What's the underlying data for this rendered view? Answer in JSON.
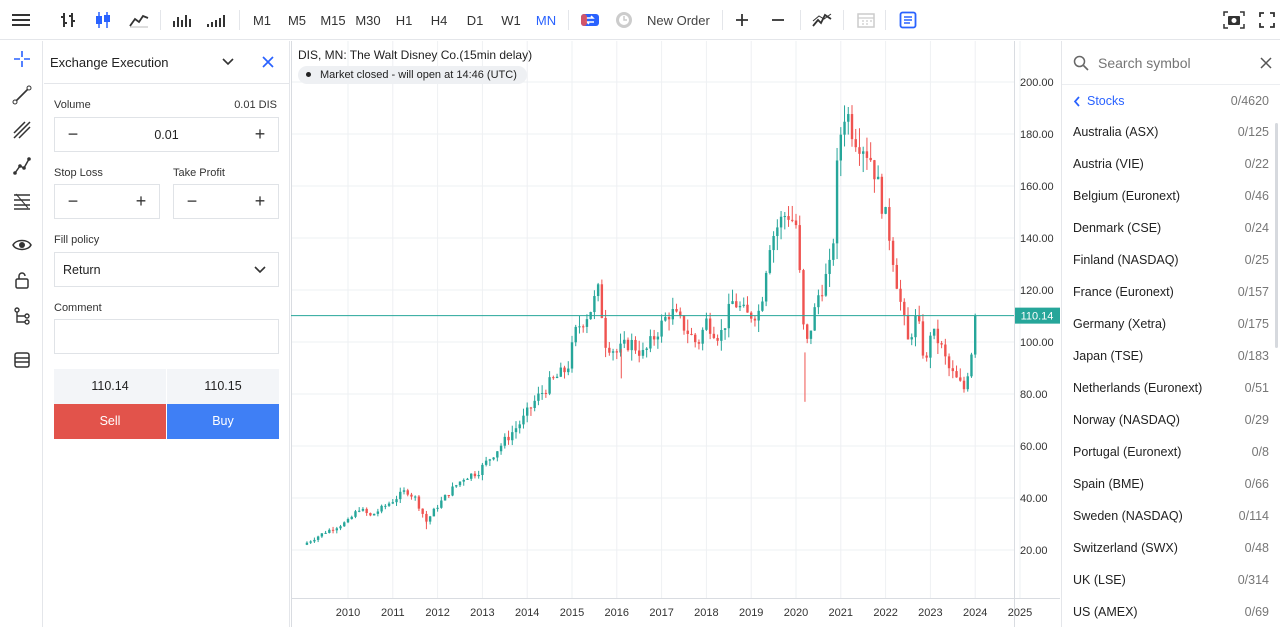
{
  "toolbar": {
    "timeframes": [
      "M1",
      "M5",
      "M15",
      "M30",
      "H1",
      "H4",
      "D1",
      "W1",
      "MN"
    ],
    "active_timeframe": "MN",
    "new_order_label": "New Order"
  },
  "order": {
    "title": "Exchange Execution",
    "volume_label": "Volume",
    "volume_unit": "0.01 DIS",
    "volume_value": "0.01",
    "stop_loss_label": "Stop Loss",
    "take_profit_label": "Take Profit",
    "fill_policy_label": "Fill policy",
    "fill_policy_value": "Return",
    "comment_label": "Comment",
    "bid": "110.14",
    "ask": "110.15",
    "sell_label": "Sell",
    "buy_label": "Buy",
    "minus": "−",
    "plus": "+"
  },
  "chart": {
    "title": "DIS, MN: The Walt Disney Co.(15min delay)",
    "status": "Market closed - will open at 14:46 (UTC)",
    "price_ticks": [
      "20.00",
      "40.00",
      "60.00",
      "80.00",
      "100.00",
      "120.00",
      "140.00",
      "160.00",
      "180.00",
      "200.00"
    ],
    "year_ticks": [
      "2010",
      "2011",
      "2012",
      "2013",
      "2014",
      "2015",
      "2016",
      "2017",
      "2018",
      "2019",
      "2020",
      "2021",
      "2022",
      "2023",
      "2024",
      "2025"
    ],
    "last_price": "110.14",
    "colors": {
      "up": "#26a69a",
      "down": "#ef5350",
      "last": "#26a69a"
    }
  },
  "chart_data": {
    "type": "candlestick",
    "title": "DIS, MN: The Walt Disney Co.(15min delay)",
    "ylim": [
      0,
      210
    ],
    "xlim": [
      2009.0,
      2025.0
    ],
    "y_ticks": [
      20,
      40,
      60,
      80,
      100,
      120,
      140,
      160,
      180,
      200
    ],
    "x_ticks": [
      2010,
      2011,
      2012,
      2013,
      2014,
      2015,
      2016,
      2017,
      2018,
      2019,
      2020,
      2021,
      2022,
      2023,
      2024,
      2025
    ],
    "close_path": [
      [
        2009.0,
        22
      ],
      [
        2009.5,
        27
      ],
      [
        2010.0,
        31
      ],
      [
        2010.25,
        36
      ],
      [
        2010.5,
        33
      ],
      [
        2010.75,
        36
      ],
      [
        2011.0,
        39
      ],
      [
        2011.3,
        43
      ],
      [
        2011.5,
        40
      ],
      [
        2011.75,
        31
      ],
      [
        2012.0,
        37
      ],
      [
        2012.3,
        43
      ],
      [
        2012.6,
        48
      ],
      [
        2012.9,
        50
      ],
      [
        2013.2,
        56
      ],
      [
        2013.5,
        62
      ],
      [
        2013.9,
        70
      ],
      [
        2014.2,
        78
      ],
      [
        2014.5,
        84
      ],
      [
        2014.9,
        90
      ],
      [
        2015.1,
        105
      ],
      [
        2015.4,
        112
      ],
      [
        2015.6,
        120
      ],
      [
        2015.75,
        100
      ],
      [
        2016.0,
        96
      ],
      [
        2016.3,
        100
      ],
      [
        2016.6,
        95
      ],
      [
        2016.9,
        104
      ],
      [
        2017.2,
        112
      ],
      [
        2017.5,
        106
      ],
      [
        2017.8,
        99
      ],
      [
        2018.0,
        108
      ],
      [
        2018.3,
        102
      ],
      [
        2018.6,
        116
      ],
      [
        2018.9,
        110
      ],
      [
        2019.2,
        112
      ],
      [
        2019.4,
        138
      ],
      [
        2019.6,
        145
      ],
      [
        2019.8,
        150
      ],
      [
        2020.0,
        145
      ],
      [
        2020.15,
        110
      ],
      [
        2020.2,
        96
      ],
      [
        2020.5,
        118
      ],
      [
        2020.8,
        130
      ],
      [
        2020.95,
        176
      ],
      [
        2021.1,
        190
      ],
      [
        2021.3,
        180
      ],
      [
        2021.5,
        176
      ],
      [
        2021.7,
        170
      ],
      [
        2021.9,
        155
      ],
      [
        2022.1,
        140
      ],
      [
        2022.3,
        118
      ],
      [
        2022.5,
        100
      ],
      [
        2022.7,
        110
      ],
      [
        2022.9,
        90
      ],
      [
        2023.0,
        104
      ],
      [
        2023.2,
        100
      ],
      [
        2023.4,
        90
      ],
      [
        2023.6,
        85
      ],
      [
        2023.75,
        82
      ],
      [
        2023.85,
        90
      ],
      [
        2023.95,
        100
      ],
      [
        2024.0,
        110.14
      ]
    ],
    "last_price": 110.14
  },
  "symbols": {
    "search_placeholder": "Search symbol",
    "back_label": "Stocks",
    "back_count": "0/4620",
    "items": [
      {
        "name": "Australia (ASX)",
        "count": "0/125"
      },
      {
        "name": "Austria (VIE)",
        "count": "0/22"
      },
      {
        "name": "Belgium (Euronext)",
        "count": "0/46"
      },
      {
        "name": "Denmark (CSE)",
        "count": "0/24"
      },
      {
        "name": "Finland (NASDAQ)",
        "count": "0/25"
      },
      {
        "name": "France (Euronext)",
        "count": "0/157"
      },
      {
        "name": "Germany (Xetra)",
        "count": "0/175"
      },
      {
        "name": "Japan (TSE)",
        "count": "0/183"
      },
      {
        "name": "Netherlands (Euronext)",
        "count": "0/51"
      },
      {
        "name": "Norway (NASDAQ)",
        "count": "0/29"
      },
      {
        "name": "Portugal (Euronext)",
        "count": "0/8"
      },
      {
        "name": "Spain (BME)",
        "count": "0/66"
      },
      {
        "name": "Sweden (NASDAQ)",
        "count": "0/114"
      },
      {
        "name": "Switzerland (SWX)",
        "count": "0/48"
      },
      {
        "name": "UK (LSE)",
        "count": "0/314"
      },
      {
        "name": "US (AMEX)",
        "count": "0/69"
      }
    ]
  }
}
